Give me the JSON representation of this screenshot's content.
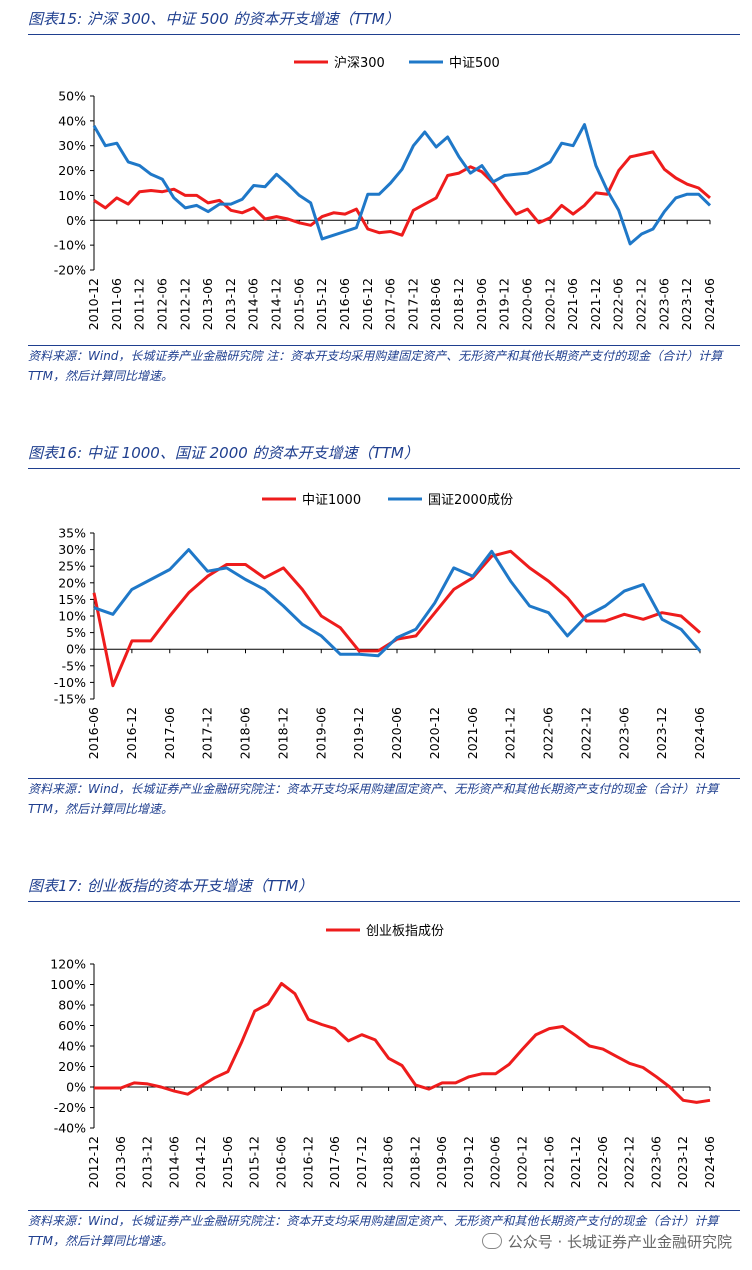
{
  "figures": [
    {
      "title": "图表15: 沪深 300、中证 500 的资本开支增速（TTM）",
      "source": "资料来源：Wind，长城证券产业金融研究院 注：资本开支均采用购建固定资产、无形资产和其他长期资产支付的现金（合计）计算 TTM，然后计算同比增速。"
    },
    {
      "title": "图表16: 中证 1000、国证 2000 的资本开支增速（TTM）",
      "source": "资料来源：Wind，长城证券产业金融研究院注：资本开支均采用购建固定资产、无形资产和其他长期资产支付的现金（合计）计算 TTM，然后计算同比增速。"
    },
    {
      "title": "图表17: 创业板指的资本开支增速（TTM）",
      "source": "资料来源：Wind，长城证券产业金融研究院注：资本开支均采用购建固定资产、无形资产和其他长期资产支付的现金（合计）计算 TTM，然后计算同比增速。"
    }
  ],
  "watermark": "公众号 · 长城证券产业金融研究院",
  "chart_data": [
    {
      "type": "line",
      "ylim": [
        -20,
        50
      ],
      "yticks": [
        "-20%",
        "-10%",
        "0%",
        "10%",
        "20%",
        "30%",
        "40%",
        "50%"
      ],
      "xticks": [
        "2010-12",
        "2011-06",
        "2011-12",
        "2012-06",
        "2012-12",
        "2013-06",
        "2013-12",
        "2014-06",
        "2014-12",
        "2015-06",
        "2015-12",
        "2016-06",
        "2016-12",
        "2017-06",
        "2017-12",
        "2018-06",
        "2018-12",
        "2019-06",
        "2019-12",
        "2020-06",
        "2020-12",
        "2021-06",
        "2021-12",
        "2022-06",
        "2022-12",
        "2023-06",
        "2023-12",
        "2024-06"
      ],
      "legend_position": "top-center",
      "series": [
        {
          "name": "沪深300",
          "color": "#ee1c1c",
          "values": [
            8,
            5,
            9,
            6.5,
            11.5,
            12,
            11.5,
            12.5,
            10,
            10,
            7,
            8,
            4,
            3,
            5,
            0.5,
            1.5,
            0.5,
            -1,
            -2,
            1.5,
            3,
            2.5,
            4.5,
            -3.5,
            -5,
            -4.5,
            -6,
            4,
            6.5,
            9,
            18,
            19,
            21.5,
            19.5,
            15,
            8.5,
            2.5,
            4.5,
            -1,
            1,
            6,
            2.5,
            6,
            11,
            10.5,
            20,
            25.5,
            26.5,
            27.5,
            20.5,
            17,
            14.5,
            13,
            9
          ]
        },
        {
          "name": "中证500",
          "color": "#1f78c8",
          "values": [
            38,
            30,
            31,
            23.5,
            22,
            18.5,
            16.5,
            9,
            5,
            6,
            3.5,
            6.5,
            6.5,
            8.5,
            14,
            13.5,
            18.5,
            14.5,
            10,
            7,
            -7.5,
            -6,
            -4.5,
            -3,
            10.5,
            10.5,
            15,
            20.5,
            30,
            35.5,
            29.5,
            33.5,
            25.5,
            19,
            22,
            15.5,
            18,
            18.5,
            19,
            21,
            23.5,
            31,
            30,
            38.5,
            22,
            12,
            4,
            -9.5,
            -5.5,
            -3.5,
            3.5,
            9,
            10.5,
            10.5,
            6
          ]
        }
      ]
    },
    {
      "type": "line",
      "ylim": [
        -15,
        35
      ],
      "yticks": [
        "-15%",
        "-10%",
        "-5%",
        "0%",
        "5%",
        "10%",
        "15%",
        "20%",
        "25%",
        "30%",
        "35%"
      ],
      "xticks": [
        "2016-06",
        "2016-12",
        "2017-06",
        "2017-12",
        "2018-06",
        "2018-12",
        "2019-06",
        "2019-12",
        "2020-06",
        "2020-12",
        "2021-06",
        "2021-12",
        "2022-06",
        "2022-12",
        "2023-06",
        "2023-12",
        "2024-06"
      ],
      "legend_position": "top-center",
      "series": [
        {
          "name": "中证1000",
          "color": "#ee1c1c",
          "values": [
            17,
            -11,
            2.5,
            2.5,
            10,
            17,
            22,
            25.5,
            25.5,
            21.5,
            24.5,
            18,
            10,
            6.5,
            -0.5,
            -0.5,
            3,
            4,
            11,
            18,
            21.5,
            28,
            29.5,
            24.5,
            20.5,
            15.5,
            8.5,
            8.5,
            10.5,
            9,
            11,
            10,
            5
          ]
        },
        {
          "name": "国证2000成份",
          "color": "#1f78c8",
          "values": [
            12.5,
            10.5,
            18,
            21,
            24,
            30,
            23.5,
            24.5,
            21,
            18,
            13,
            7.5,
            4,
            -1.5,
            -1.5,
            -2,
            3.5,
            6,
            14,
            24.5,
            22,
            29.5,
            20.5,
            13,
            11,
            4,
            10,
            13,
            17.5,
            19.5,
            9,
            6,
            -0.5
          ]
        }
      ]
    },
    {
      "type": "line",
      "ylim": [
        -40,
        120
      ],
      "yticks": [
        "-40%",
        "-20%",
        "0%",
        "20%",
        "40%",
        "60%",
        "80%",
        "100%",
        "120%"
      ],
      "xticks": [
        "2012-12",
        "2013-06",
        "2013-12",
        "2014-06",
        "2014-12",
        "2015-06",
        "2015-12",
        "2016-06",
        "2016-12",
        "2017-06",
        "2017-12",
        "2018-06",
        "2018-12",
        "2019-06",
        "2019-12",
        "2020-06",
        "2020-12",
        "2021-06",
        "2021-12",
        "2022-06",
        "2022-12",
        "2023-06",
        "2023-12",
        "2024-06"
      ],
      "legend_position": "top-center",
      "series": [
        {
          "name": "创业板指成份",
          "color": "#ee1c1c",
          "values": [
            -1,
            -1,
            -1,
            4,
            3,
            0,
            -4,
            -7,
            1,
            9,
            15,
            43,
            74,
            81,
            101,
            91,
            66,
            61,
            57,
            45,
            51,
            46,
            28,
            21,
            2,
            -2,
            4,
            4,
            10,
            13,
            13,
            22,
            37,
            51,
            57,
            59,
            50,
            40,
            37,
            30,
            23,
            19,
            10,
            0,
            -13,
            -15,
            -13
          ]
        }
      ]
    }
  ]
}
